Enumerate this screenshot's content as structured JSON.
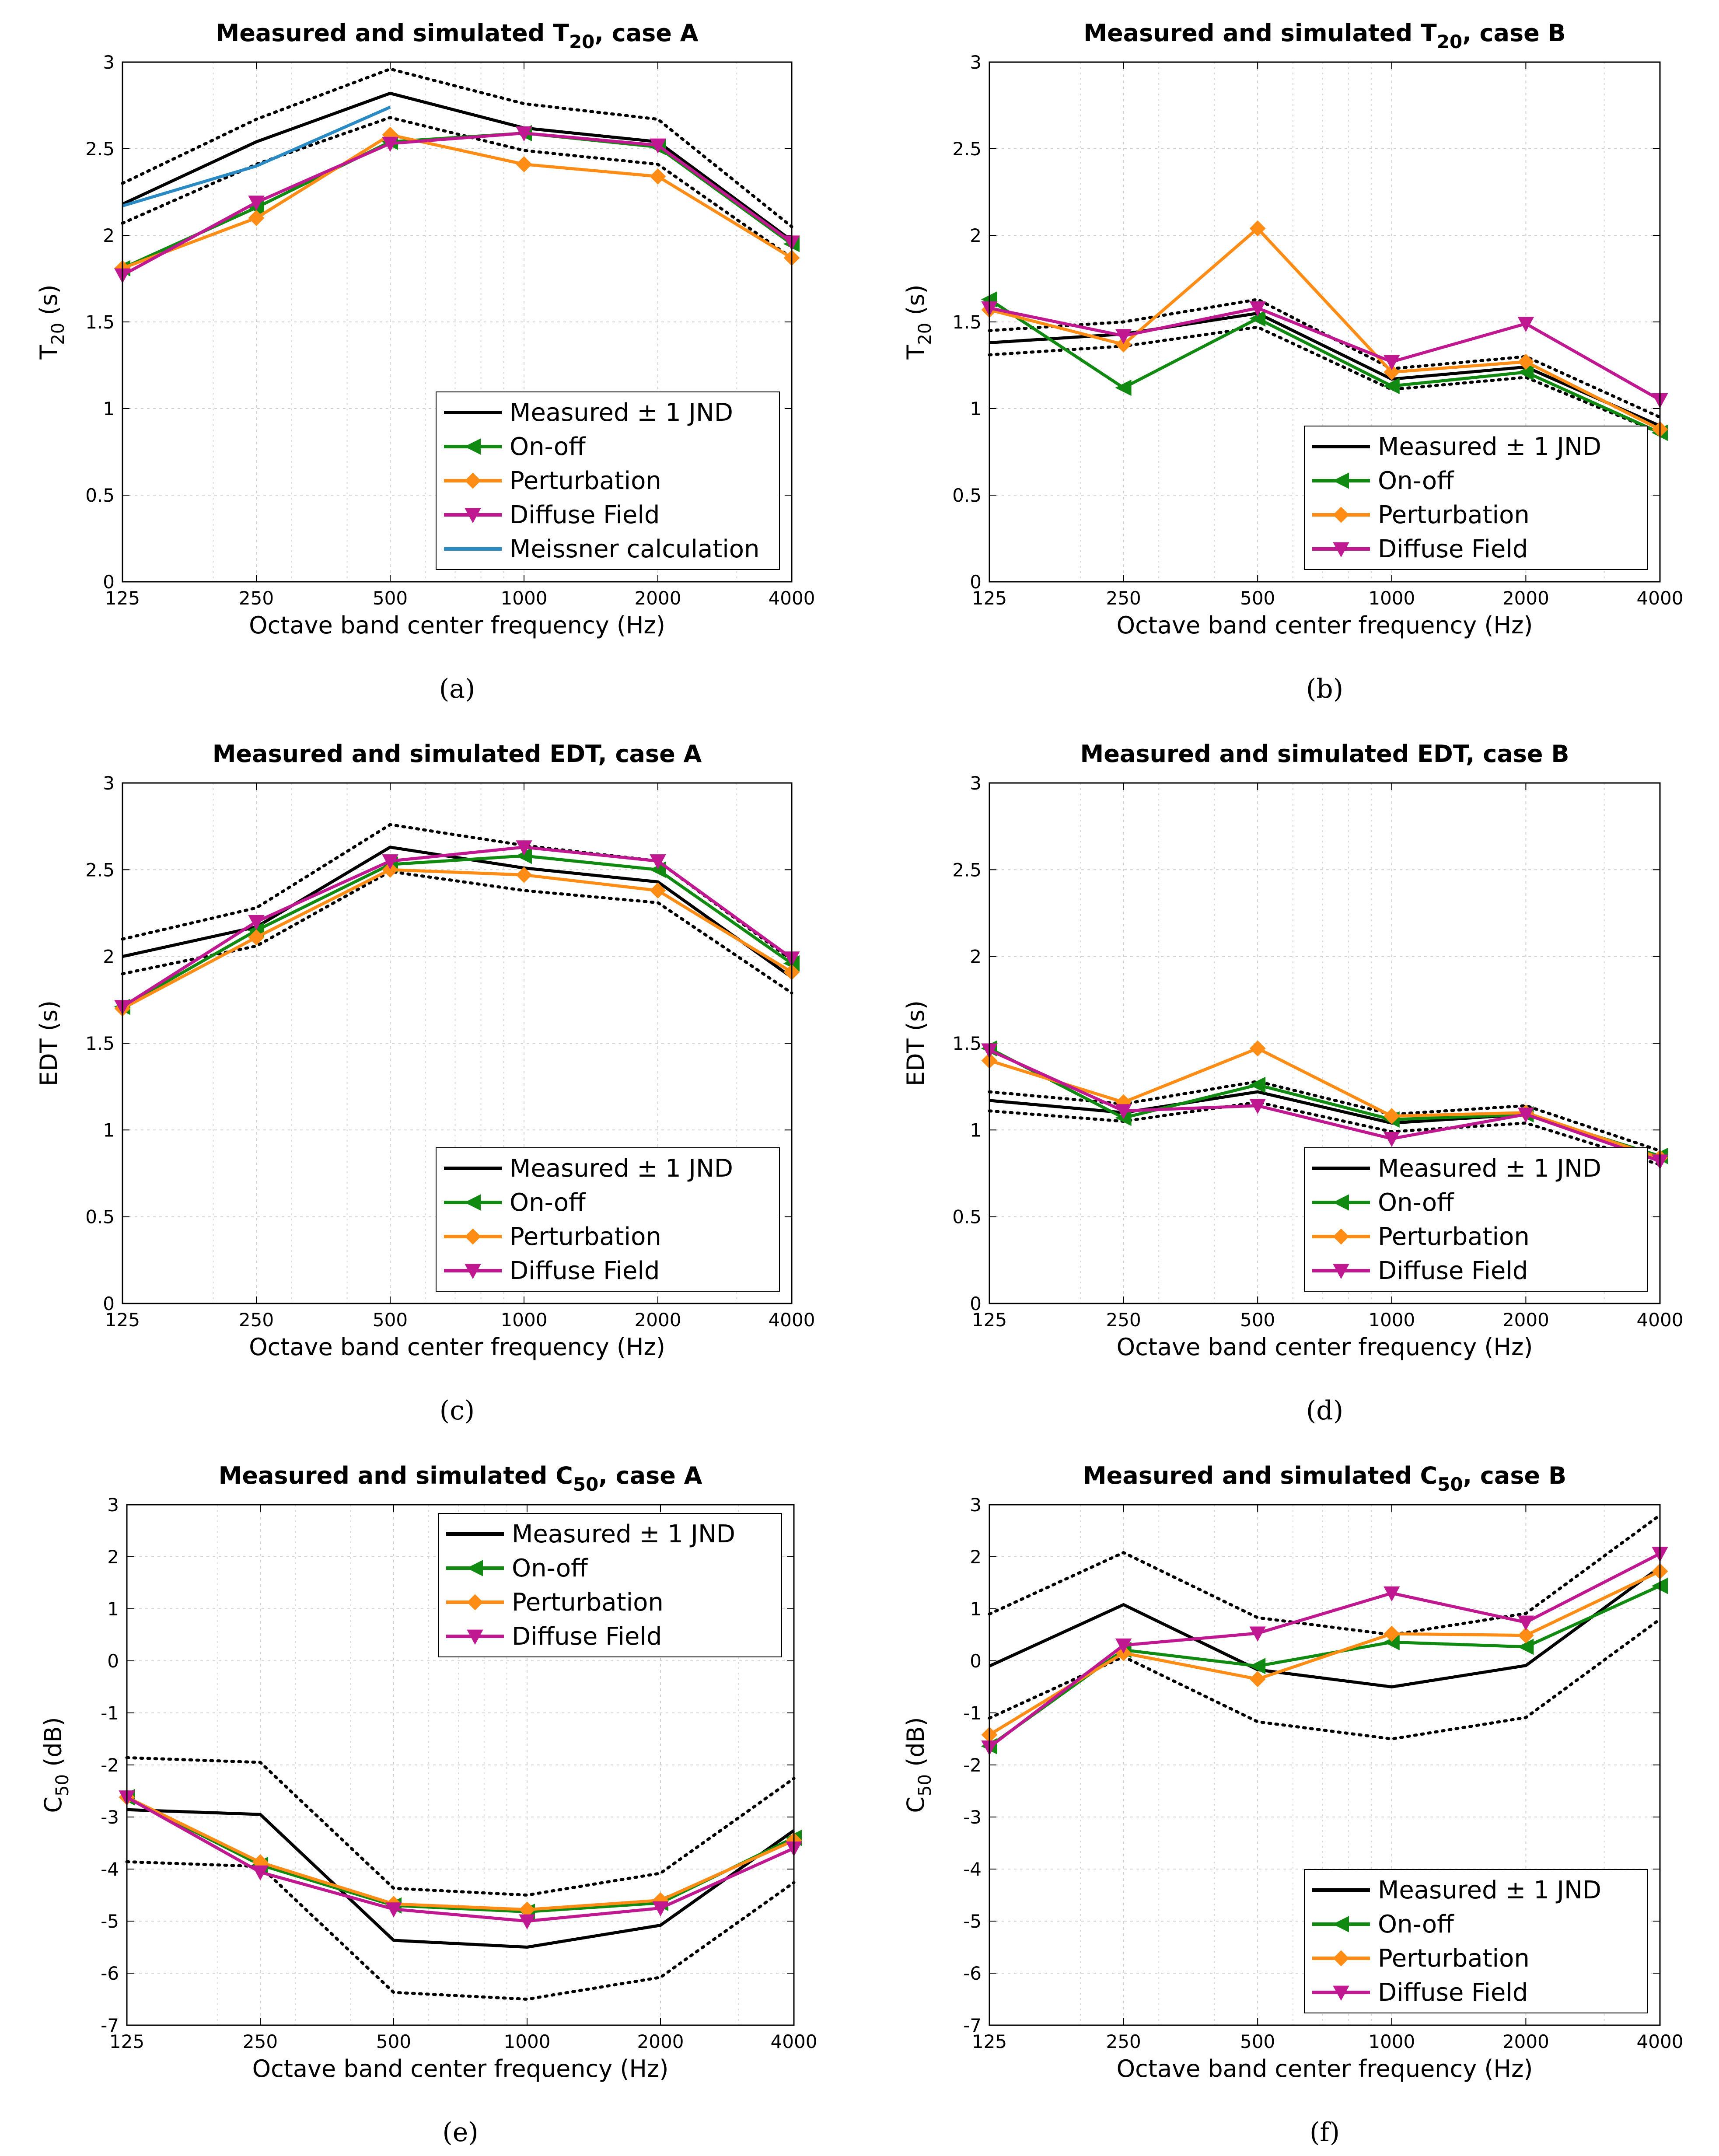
{
  "chart_data": [
    {
      "id": "a",
      "type": "line",
      "caption": "(a)",
      "title": {
        "prefix": "Measured and simulated T",
        "sub": "20",
        "suffix": ", case A"
      },
      "xlabel": "Octave band center frequency (Hz)",
      "ylabel": {
        "main": "T",
        "sub": "20",
        "rest": " (s)"
      },
      "x": [
        125,
        250,
        500,
        1000,
        2000,
        4000
      ],
      "x_tick_labels": [
        "125",
        "250",
        "500",
        "1000",
        "2000",
        "4000"
      ],
      "xscale": "log",
      "ylim": [
        0,
        3
      ],
      "y_ticks": [
        0,
        0.5,
        1,
        1.5,
        2,
        2.5,
        3
      ],
      "y_tick_labels": [
        "0",
        "0.5",
        "1",
        "1.5",
        "2",
        "2.5",
        "3"
      ],
      "grid": true,
      "legend_position": "bottom-right",
      "series": [
        {
          "name": "Measured ± 1 JND",
          "color": "#000000",
          "marker": "none",
          "values": [
            2.18,
            2.54,
            2.82,
            2.62,
            2.54,
            1.97
          ],
          "band": {
            "upper": [
              2.3,
              2.67,
              2.96,
              2.76,
              2.67,
              2.05
            ],
            "lower": [
              2.07,
              2.41,
              2.68,
              2.49,
              2.41,
              1.87
            ]
          }
        },
        {
          "name": "On-off",
          "color": "#108a10",
          "marker": "triangle-left",
          "values": [
            1.81,
            2.16,
            2.54,
            2.59,
            2.51,
            1.95
          ]
        },
        {
          "name": "Perturbation",
          "color": "#ff8c14",
          "marker": "diamond",
          "values": [
            1.81,
            2.1,
            2.58,
            2.41,
            2.34,
            1.87
          ]
        },
        {
          "name": "Diffuse Field",
          "color": "#c01890",
          "marker": "triangle-down",
          "values": [
            1.77,
            2.19,
            2.53,
            2.59,
            2.52,
            1.96
          ]
        },
        {
          "name": "Meissner calculation",
          "color": "#2a8ac4",
          "marker": "none",
          "x": [
            125,
            250,
            500
          ],
          "values": [
            2.17,
            2.4,
            2.74
          ]
        }
      ]
    },
    {
      "id": "b",
      "type": "line",
      "caption": "(b)",
      "title": {
        "prefix": "Measured and simulated T",
        "sub": "20",
        "suffix": ", case B"
      },
      "xlabel": "Octave band center frequency (Hz)",
      "ylabel": {
        "main": "T",
        "sub": "20",
        "rest": " (s)"
      },
      "x": [
        125,
        250,
        500,
        1000,
        2000,
        4000
      ],
      "x_tick_labels": [
        "125",
        "250",
        "500",
        "1000",
        "2000",
        "4000"
      ],
      "xscale": "log",
      "ylim": [
        0,
        3
      ],
      "y_ticks": [
        0,
        0.5,
        1,
        1.5,
        2,
        2.5,
        3
      ],
      "y_tick_labels": [
        "0",
        "0.5",
        "1",
        "1.5",
        "2",
        "2.5",
        "3"
      ],
      "grid": true,
      "legend_position": "bottom-right",
      "series": [
        {
          "name": "Measured ± 1 JND",
          "color": "#000000",
          "marker": "none",
          "values": [
            1.38,
            1.43,
            1.55,
            1.17,
            1.24,
            0.9
          ],
          "band": {
            "upper": [
              1.45,
              1.5,
              1.63,
              1.23,
              1.3,
              0.95
            ],
            "lower": [
              1.31,
              1.36,
              1.47,
              1.11,
              1.18,
              0.86
            ]
          }
        },
        {
          "name": "On-off",
          "color": "#108a10",
          "marker": "triangle-left",
          "values": [
            1.63,
            1.12,
            1.52,
            1.13,
            1.21,
            0.86
          ]
        },
        {
          "name": "Perturbation",
          "color": "#ff8c14",
          "marker": "diamond",
          "values": [
            1.57,
            1.37,
            2.04,
            1.21,
            1.27,
            0.88
          ]
        },
        {
          "name": "Diffuse Field",
          "color": "#c01890",
          "marker": "triangle-down",
          "values": [
            1.58,
            1.42,
            1.58,
            1.27,
            1.49,
            1.05
          ]
        }
      ]
    },
    {
      "id": "c",
      "type": "line",
      "caption": "(c)",
      "title": {
        "prefix": "Measured and simulated EDT, case A",
        "sub": "",
        "suffix": ""
      },
      "xlabel": "Octave band center frequency (Hz)",
      "ylabel": {
        "main": "EDT (s)",
        "sub": "",
        "rest": ""
      },
      "x": [
        125,
        250,
        500,
        1000,
        2000,
        4000
      ],
      "x_tick_labels": [
        "125",
        "250",
        "500",
        "1000",
        "2000",
        "4000"
      ],
      "xscale": "log",
      "ylim": [
        0,
        3
      ],
      "y_ticks": [
        0,
        0.5,
        1,
        1.5,
        2,
        2.5,
        3
      ],
      "y_tick_labels": [
        "0",
        "0.5",
        "1",
        "1.5",
        "2",
        "2.5",
        "3"
      ],
      "grid": true,
      "legend_position": "bottom-right",
      "series": [
        {
          "name": "Measured ± 1 JND",
          "color": "#000000",
          "marker": "none",
          "values": [
            2.0,
            2.17,
            2.63,
            2.51,
            2.43,
            1.88
          ],
          "band": {
            "upper": [
              2.1,
              2.28,
              2.76,
              2.64,
              2.55,
              1.98
            ],
            "lower": [
              1.9,
              2.06,
              2.49,
              2.38,
              2.31,
              1.79
            ]
          }
        },
        {
          "name": "On-off",
          "color": "#108a10",
          "marker": "triangle-left",
          "values": [
            1.71,
            2.15,
            2.53,
            2.58,
            2.5,
            1.96
          ]
        },
        {
          "name": "Perturbation",
          "color": "#ff8c14",
          "marker": "diamond",
          "values": [
            1.7,
            2.11,
            2.5,
            2.47,
            2.38,
            1.91
          ]
        },
        {
          "name": "Diffuse Field",
          "color": "#c01890",
          "marker": "triangle-down",
          "values": [
            1.71,
            2.2,
            2.55,
            2.63,
            2.55,
            1.99
          ]
        }
      ]
    },
    {
      "id": "d",
      "type": "line",
      "caption": "(d)",
      "title": {
        "prefix": "Measured and simulated EDT, case B",
        "sub": "",
        "suffix": ""
      },
      "xlabel": "Octave band center frequency (Hz)",
      "ylabel": {
        "main": "EDT (s)",
        "sub": "",
        "rest": ""
      },
      "x": [
        125,
        250,
        500,
        1000,
        2000,
        4000
      ],
      "x_tick_labels": [
        "125",
        "250",
        "500",
        "1000",
        "2000",
        "4000"
      ],
      "xscale": "log",
      "ylim": [
        0,
        3
      ],
      "y_ticks": [
        0,
        0.5,
        1,
        1.5,
        2,
        2.5,
        3
      ],
      "y_tick_labels": [
        "0",
        "0.5",
        "1",
        "1.5",
        "2",
        "2.5",
        "3"
      ],
      "grid": true,
      "legend_position": "bottom-right",
      "series": [
        {
          "name": "Measured ± 1 JND",
          "color": "#000000",
          "marker": "none",
          "values": [
            1.17,
            1.1,
            1.22,
            1.04,
            1.09,
            0.84
          ],
          "band": {
            "upper": [
              1.22,
              1.15,
              1.28,
              1.09,
              1.14,
              0.88
            ],
            "lower": [
              1.11,
              1.05,
              1.16,
              0.99,
              1.04,
              0.8
            ]
          }
        },
        {
          "name": "On-off",
          "color": "#108a10",
          "marker": "triangle-left",
          "values": [
            1.47,
            1.07,
            1.26,
            1.06,
            1.09,
            0.85
          ]
        },
        {
          "name": "Perturbation",
          "color": "#ff8c14",
          "marker": "diamond",
          "values": [
            1.4,
            1.16,
            1.47,
            1.08,
            1.1,
            0.84
          ]
        },
        {
          "name": "Diffuse Field",
          "color": "#c01890",
          "marker": "triangle-down",
          "values": [
            1.46,
            1.11,
            1.14,
            0.95,
            1.09,
            0.82
          ]
        }
      ]
    },
    {
      "id": "e",
      "type": "line",
      "caption": "(e)",
      "title": {
        "prefix": "Measured and simulated C",
        "sub": "50",
        "suffix": ", case A"
      },
      "xlabel": "Octave band center frequency (Hz)",
      "ylabel": {
        "main": "C",
        "sub": "50",
        "rest": " (dB)"
      },
      "x": [
        125,
        250,
        500,
        1000,
        2000,
        4000
      ],
      "x_tick_labels": [
        "125",
        "250",
        "500",
        "1000",
        "2000",
        "4000"
      ],
      "xscale": "log",
      "ylim": [
        -7,
        3
      ],
      "y_ticks": [
        -7,
        -6,
        -5,
        -4,
        -3,
        -2,
        -1,
        0,
        1,
        2,
        3
      ],
      "y_tick_labels": [
        "-7",
        "-6",
        "-5",
        "-4",
        "-3",
        "-2",
        "-1",
        "0",
        "1",
        "2",
        "3"
      ],
      "grid": true,
      "legend_position": "top-right",
      "series": [
        {
          "name": "Measured ± 1 JND",
          "color": "#000000",
          "marker": "none",
          "values": [
            -2.86,
            -2.95,
            -5.37,
            -5.5,
            -5.08,
            -3.26
          ],
          "band": {
            "upper": [
              -1.86,
              -1.95,
              -4.37,
              -4.5,
              -4.08,
              -2.26
            ],
            "lower": [
              -3.86,
              -3.95,
              -6.37,
              -6.5,
              -6.08,
              -4.26
            ]
          }
        },
        {
          "name": "On-off",
          "color": "#108a10",
          "marker": "triangle-left",
          "values": [
            -2.62,
            -3.92,
            -4.7,
            -4.82,
            -4.65,
            -3.4
          ]
        },
        {
          "name": "Perturbation",
          "color": "#ff8c14",
          "marker": "diamond",
          "values": [
            -2.62,
            -3.87,
            -4.67,
            -4.78,
            -4.6,
            -3.45
          ]
        },
        {
          "name": "Diffuse Field",
          "color": "#c01890",
          "marker": "triangle-down",
          "values": [
            -2.62,
            -4.06,
            -4.77,
            -5.0,
            -4.75,
            -3.6
          ]
        }
      ]
    },
    {
      "id": "f",
      "type": "line",
      "caption": "(f)",
      "title": {
        "prefix": "Measured and simulated C",
        "sub": "50",
        "suffix": ", case B"
      },
      "xlabel": "Octave band center frequency (Hz)",
      "ylabel": {
        "main": "C",
        "sub": "50",
        "rest": " (dB)"
      },
      "x": [
        125,
        250,
        500,
        1000,
        2000,
        4000
      ],
      "x_tick_labels": [
        "125",
        "250",
        "500",
        "1000",
        "2000",
        "4000"
      ],
      "xscale": "log",
      "ylim": [
        -7,
        3
      ],
      "y_ticks": [
        -7,
        -6,
        -5,
        -4,
        -3,
        -2,
        -1,
        0,
        1,
        2,
        3
      ],
      "y_tick_labels": [
        "-7",
        "-6",
        "-5",
        "-4",
        "-3",
        "-2",
        "-1",
        "0",
        "1",
        "2",
        "3"
      ],
      "grid": true,
      "legend_position": "bottom-right",
      "series": [
        {
          "name": "Measured ± 1 JND",
          "color": "#000000",
          "marker": "none",
          "values": [
            -0.1,
            1.08,
            -0.17,
            -0.5,
            -0.09,
            1.8
          ],
          "band": {
            "upper": [
              0.9,
              2.08,
              0.83,
              0.5,
              0.91,
              2.8
            ],
            "lower": [
              -1.1,
              0.08,
              -1.17,
              -1.5,
              -1.09,
              0.8
            ]
          }
        },
        {
          "name": "On-off",
          "color": "#108a10",
          "marker": "triangle-left",
          "values": [
            -1.64,
            0.21,
            -0.1,
            0.36,
            0.27,
            1.44
          ]
        },
        {
          "name": "Perturbation",
          "color": "#ff8c14",
          "marker": "diamond",
          "values": [
            -1.42,
            0.15,
            -0.35,
            0.52,
            0.49,
            1.72
          ]
        },
        {
          "name": "Diffuse Field",
          "color": "#c01890",
          "marker": "triangle-down",
          "values": [
            -1.66,
            0.3,
            0.53,
            1.3,
            0.74,
            2.06
          ]
        }
      ]
    }
  ]
}
